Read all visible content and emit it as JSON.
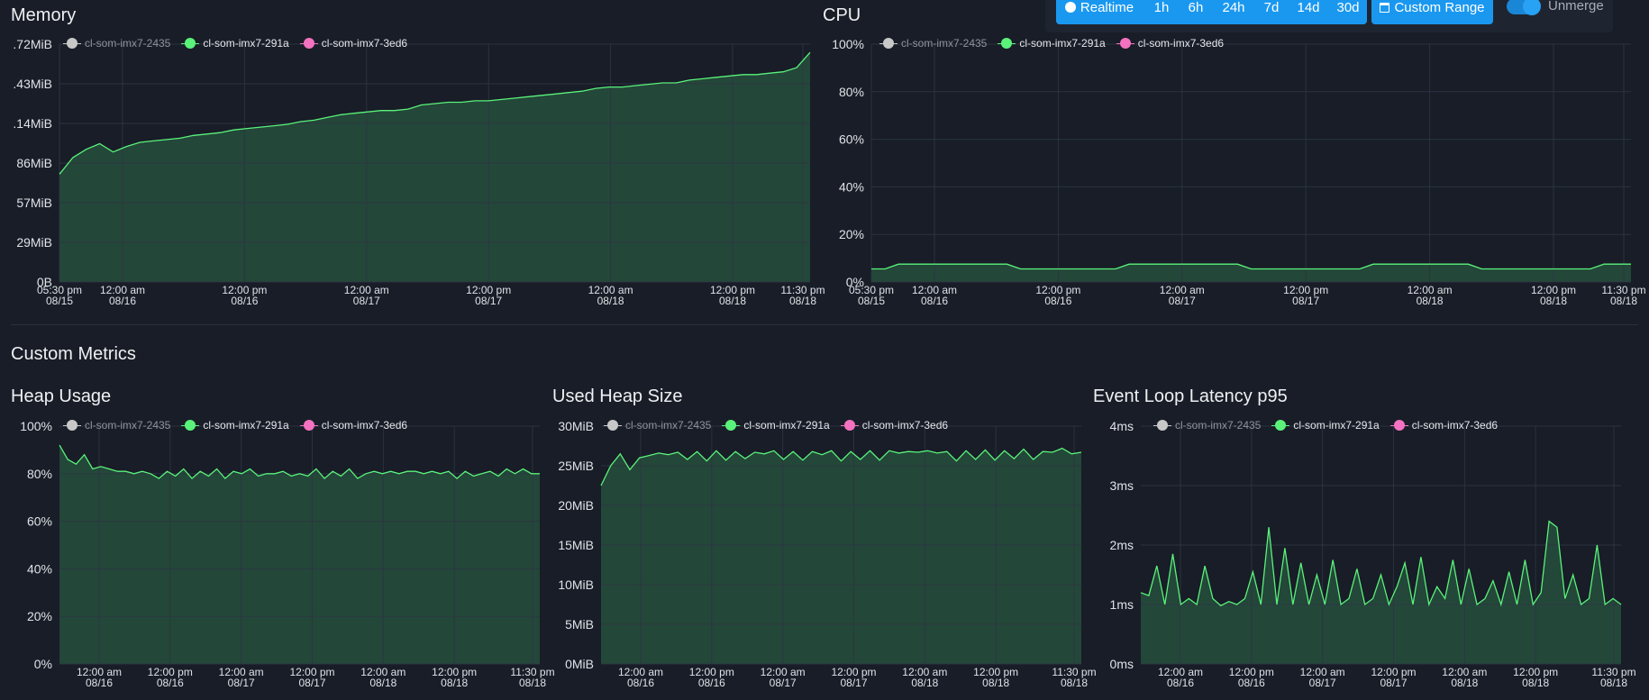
{
  "toolbar": {
    "realtime": "Realtime",
    "ranges": [
      "1h",
      "6h",
      "24h",
      "7d",
      "14d",
      "30d"
    ],
    "custom_range": "Custom Range",
    "unmerge": "Unmerge"
  },
  "sections": {
    "custom_metrics": "Custom Metrics"
  },
  "colors": {
    "series": [
      "#c8c8c8",
      "#5af27a",
      "#f472c0"
    ],
    "fill": "#244a3a",
    "line": "#5af27a",
    "grid": "#2d3542"
  },
  "series_names": [
    "cl-som-imx7-2435",
    "cl-som-imx7-291a",
    "cl-som-imx7-3ed6"
  ],
  "charts": [
    {
      "id": "memory",
      "title": "Memory",
      "chart_data": {
        "type": "area",
        "title": "Memory",
        "y_ticks": [
          ".72MiB",
          ".43MiB",
          ".14MiB",
          "86MiB",
          "57MiB",
          "29MiB",
          "0B"
        ],
        "ylim": [
          0,
          172
        ],
        "y_unit": "MiB",
        "x_ticks": [
          [
            "05:30 pm",
            "08/15"
          ],
          [
            "12:00 am",
            "08/16"
          ],
          [
            "12:00 pm",
            "08/16"
          ],
          [
            "12:00 am",
            "08/17"
          ],
          [
            "12:00 pm",
            "08/17"
          ],
          [
            "12:00 am",
            "08/18"
          ],
          [
            "12:00 pm",
            "08/18"
          ],
          [
            "11:30 pm",
            "08/18"
          ]
        ],
        "series": [
          {
            "name": "cl-som-imx7-291a",
            "values": [
              78,
              90,
              96,
              100,
              94,
              98,
              101,
              102,
              103,
              104,
              106,
              107,
              108,
              110,
              111,
              112,
              113,
              114,
              116,
              117,
              119,
              121,
              122,
              123,
              124,
              124,
              125,
              128,
              129,
              130,
              130,
              131,
              131,
              132,
              133,
              134,
              135,
              136,
              137,
              138,
              140,
              141,
              141,
              142,
              143,
              144,
              144,
              146,
              147,
              148,
              149,
              150,
              150,
              151,
              152,
              155,
              166
            ]
          }
        ]
      }
    },
    {
      "id": "cpu",
      "title": "CPU",
      "chart_data": {
        "type": "area",
        "title": "CPU",
        "y_ticks": [
          "100%",
          "80%",
          "60%",
          "40%",
          "20%",
          "0%"
        ],
        "ylim": [
          0,
          100
        ],
        "y_unit": "%",
        "x_ticks": [
          [
            "05:30 pm",
            "08/15"
          ],
          [
            "12:00 am",
            "08/16"
          ],
          [
            "12:00 pm",
            "08/16"
          ],
          [
            "12:00 am",
            "08/17"
          ],
          [
            "12:00 pm",
            "08/17"
          ],
          [
            "12:00 am",
            "08/18"
          ],
          [
            "12:00 pm",
            "08/18"
          ],
          [
            "11:30 pm",
            "08/18"
          ]
        ],
        "series": [
          {
            "name": "cl-som-imx7-291a",
            "values": [
              5.5,
              5.5,
              7.5,
              7.5,
              7.5,
              7.5,
              7.5,
              7.5,
              7.5,
              7.5,
              7.5,
              5.5,
              5.5,
              5.5,
              5.5,
              5.5,
              5.5,
              5.5,
              5.5,
              7.5,
              7.5,
              7.5,
              7.5,
              7.5,
              7.5,
              7.5,
              7.5,
              7.5,
              5.5,
              5.5,
              5.5,
              5.5,
              5.5,
              5.5,
              5.5,
              5.5,
              5.5,
              7.5,
              7.5,
              7.5,
              7.5,
              7.5,
              7.5,
              7.5,
              7.5,
              5.5,
              5.5,
              5.5,
              5.5,
              5.5,
              5.5,
              5.5,
              5.5,
              5.5,
              7.5,
              7.5,
              7.5
            ]
          }
        ]
      }
    },
    {
      "id": "heap-usage",
      "title": "Heap Usage",
      "chart_data": {
        "type": "area",
        "title": "Heap Usage",
        "y_ticks": [
          "100%",
          "80%",
          "60%",
          "40%",
          "20%",
          "0%"
        ],
        "ylim": [
          0,
          100
        ],
        "y_unit": "%",
        "x_ticks": [
          [
            "12:00 am",
            "08/16"
          ],
          [
            "12:00 pm",
            "08/16"
          ],
          [
            "12:00 am",
            "08/17"
          ],
          [
            "12:00 pm",
            "08/17"
          ],
          [
            "12:00 am",
            "08/18"
          ],
          [
            "12:00 pm",
            "08/18"
          ],
          [
            "11:30 pm",
            "08/18"
          ]
        ],
        "series": [
          {
            "name": "cl-som-imx7-291a",
            "values": [
              92,
              86,
              84,
              88,
              82,
              83,
              82,
              81,
              81,
              80,
              81,
              80,
              78,
              81,
              79,
              82,
              78,
              81,
              79,
              82,
              78,
              81,
              80,
              82,
              79,
              80,
              80,
              81,
              79,
              80,
              79,
              82,
              78,
              81,
              79,
              82,
              78,
              80,
              81,
              80,
              81,
              80,
              81,
              81,
              80,
              81,
              80,
              81,
              78,
              81,
              79,
              80,
              81,
              79,
              82,
              80,
              82,
              80,
              80
            ]
          }
        ]
      }
    },
    {
      "id": "used-heap-size",
      "title": "Used Heap Size",
      "chart_data": {
        "type": "area",
        "title": "Used Heap Size",
        "y_ticks": [
          "30MiB",
          "25MiB",
          "20MiB",
          "15MiB",
          "10MiB",
          "5MiB",
          "0MiB"
        ],
        "ylim": [
          0,
          30
        ],
        "y_unit": "MiB",
        "x_ticks": [
          [
            "12:00 am",
            "08/16"
          ],
          [
            "12:00 pm",
            "08/16"
          ],
          [
            "12:00 am",
            "08/17"
          ],
          [
            "12:00 pm",
            "08/17"
          ],
          [
            "12:00 am",
            "08/18"
          ],
          [
            "12:00 pm",
            "08/18"
          ],
          [
            "11:30 pm",
            "08/18"
          ]
        ],
        "series": [
          {
            "name": "cl-som-imx7-291a",
            "values": [
              22.5,
              25,
              26.5,
              24.5,
              26,
              26.3,
              26.6,
              26.4,
              26.7,
              25.8,
              26.8,
              25.6,
              26.9,
              25.7,
              26.8,
              25.9,
              26.7,
              26.5,
              26.9,
              25.8,
              26.8,
              25.7,
              26.8,
              26.4,
              26.9,
              25.6,
              26.8,
              25.8,
              26.9,
              25.7,
              26.9,
              26.6,
              26.8,
              26.7,
              26.9,
              26.6,
              26.8,
              25.6,
              26.9,
              25.8,
              27,
              25.7,
              26.9,
              25.9,
              27.1,
              25.8,
              26.8,
              26.7,
              27.2,
              26.5,
              26.7
            ]
          }
        ]
      }
    },
    {
      "id": "event-loop-latency",
      "title": "Event Loop Latency p95",
      "chart_data": {
        "type": "area",
        "title": "Event Loop Latency p95",
        "y_ticks": [
          "4ms",
          "3ms",
          "2ms",
          "1ms",
          "0ms"
        ],
        "ylim": [
          0,
          4
        ],
        "y_unit": "ms",
        "x_ticks": [
          [
            "12:00 am",
            "08/16"
          ],
          [
            "12:00 pm",
            "08/16"
          ],
          [
            "12:00 am",
            "08/17"
          ],
          [
            "12:00 pm",
            "08/17"
          ],
          [
            "12:00 am",
            "08/18"
          ],
          [
            "12:00 pm",
            "08/18"
          ],
          [
            "11:30 pm",
            "08/18"
          ]
        ],
        "series": [
          {
            "name": "cl-som-imx7-291a",
            "values": [
              1.2,
              1.15,
              1.65,
              1.0,
              1.85,
              1.0,
              1.1,
              1.0,
              1.65,
              1.1,
              0.98,
              1.05,
              1.0,
              1.1,
              1.55,
              1.0,
              2.3,
              1.0,
              1.95,
              1.0,
              1.7,
              1.0,
              1.5,
              1.0,
              1.75,
              1.0,
              1.1,
              1.6,
              1.0,
              1.1,
              1.5,
              1.0,
              1.3,
              1.7,
              1.0,
              1.8,
              1.0,
              1.3,
              1.1,
              1.75,
              1.0,
              1.6,
              1.0,
              1.1,
              1.4,
              1.0,
              1.55,
              1.0,
              1.75,
              1.0,
              1.2,
              2.4,
              2.3,
              1.1,
              1.5,
              1.0,
              1.1,
              2.0,
              1.0,
              1.1,
              1.0
            ]
          }
        ]
      }
    }
  ]
}
